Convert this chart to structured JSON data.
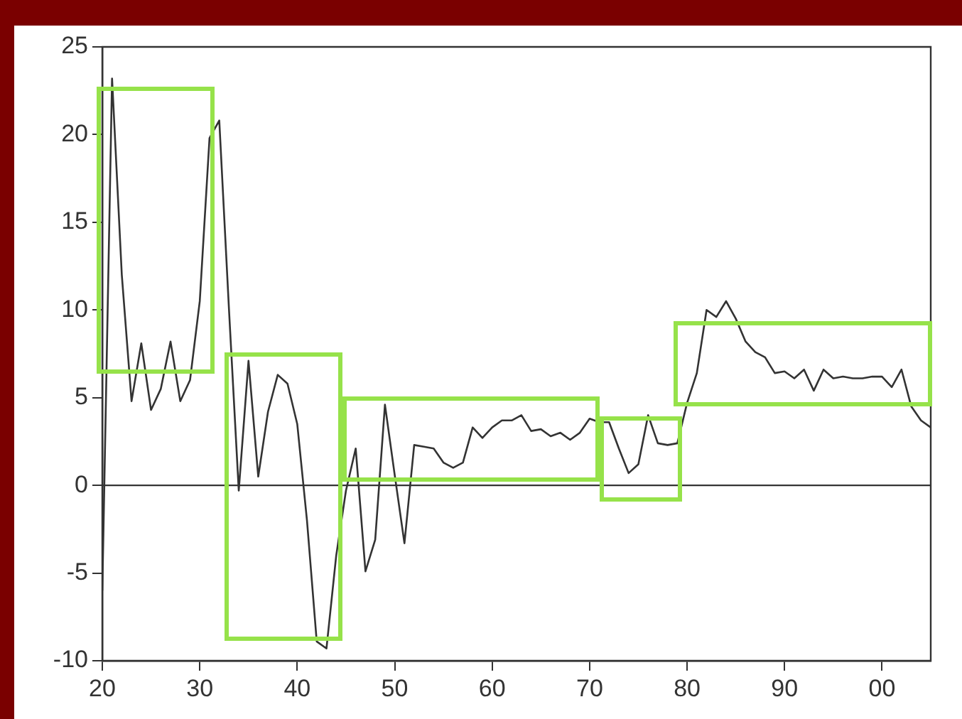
{
  "chart_data": {
    "type": "line",
    "x": [
      1920,
      1921,
      1922,
      1923,
      1924,
      1925,
      1926,
      1927,
      1928,
      1929,
      1930,
      1931,
      1932,
      1933,
      1934,
      1935,
      1936,
      1937,
      1938,
      1939,
      1940,
      1941,
      1942,
      1943,
      1944,
      1945,
      1946,
      1947,
      1948,
      1949,
      1950,
      1951,
      1952,
      1953,
      1954,
      1955,
      1956,
      1957,
      1958,
      1959,
      1960,
      1961,
      1962,
      1963,
      1964,
      1965,
      1966,
      1967,
      1968,
      1969,
      1970,
      1971,
      1972,
      1973,
      1974,
      1975,
      1976,
      1977,
      1978,
      1979,
      1980,
      1981,
      1982,
      1983,
      1984,
      1985,
      1986,
      1987,
      1988,
      1989,
      1990,
      1991,
      1992,
      1993,
      1994,
      1995,
      1996,
      1997,
      1998,
      1999,
      2000,
      2001,
      2002,
      2003,
      2004,
      2005
    ],
    "series": [
      {
        "color": "#333333",
        "values": [
          -6,
          23.2,
          12,
          4.8,
          8.1,
          4.3,
          5.5,
          8.2,
          4.8,
          6,
          10.5,
          19.8,
          20.8,
          10,
          -0.3,
          7.1,
          0.5,
          4.2,
          6.3,
          5.8,
          3.5,
          -2,
          -8.9,
          -9.3,
          -4,
          -0.3,
          2.1,
          -4.9,
          -3.1,
          4.6,
          0.6,
          -3.3,
          2.3,
          2.2,
          2.1,
          1.3,
          1,
          1.3,
          3.3,
          2.7,
          3.3,
          3.7,
          3.7,
          4,
          3.1,
          3.2,
          2.8,
          3,
          2.6,
          3,
          3.8,
          3.6,
          3.6,
          2.1,
          0.7,
          1.2,
          4,
          2.4,
          2.3,
          2.4,
          4.7,
          6.4,
          10,
          9.6,
          10.5,
          9.5,
          8.2,
          7.6,
          7.3,
          6.4,
          6.5,
          6.1,
          6.6,
          5.4,
          6.6,
          6.1,
          6.2,
          6.1,
          6.1,
          6.2,
          6.2,
          5.6,
          6.6,
          4.5,
          3.7,
          3.3
        ]
      }
    ],
    "xlim": [
      1920,
      2005
    ],
    "xticks": [
      {
        "value": 1920,
        "label": "20"
      },
      {
        "value": 1930,
        "label": "30"
      },
      {
        "value": 1940,
        "label": "40"
      },
      {
        "value": 1950,
        "label": "50"
      },
      {
        "value": 1960,
        "label": "60"
      },
      {
        "value": 1970,
        "label": "70"
      },
      {
        "value": 1980,
        "label": "80"
      },
      {
        "value": 1990,
        "label": "90"
      },
      {
        "value": 2000,
        "label": "00"
      }
    ],
    "ylim": [
      -10,
      25
    ],
    "yticks": [
      -10,
      -5,
      0,
      5,
      10,
      15,
      20,
      25
    ],
    "ref_lines": [
      {
        "axis": "y",
        "value": 0,
        "color": "#333333"
      }
    ],
    "legend": false,
    "marker": "none",
    "line_style": "solid"
  }
}
